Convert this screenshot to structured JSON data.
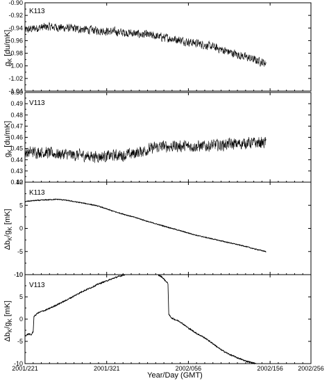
{
  "chart_data": [
    {
      "type": "line",
      "panel_label": "K113",
      "ylabel_main": "g",
      "ylabel_sub": "K",
      "ylabel_unit": " [du/mK]",
      "ylim": [
        -1.04,
        -0.9
      ],
      "yticks": [
        -1.04,
        -1.02,
        -1.0,
        -0.98,
        -0.96,
        -0.94,
        -0.92,
        -0.9
      ],
      "ytick_labels": [
        "-1.04",
        "-1.02",
        "-1.00",
        "-0.98",
        "-0.96",
        "-0.94",
        "-0.92",
        "-0.90"
      ],
      "x": [
        0,
        20,
        40,
        60,
        80,
        100,
        120,
        140,
        160,
        180,
        200,
        220,
        240,
        260,
        280,
        300,
        320,
        340,
        360,
        380,
        400,
        420,
        440,
        460,
        480,
        500,
        520,
        540,
        560,
        580,
        600,
        620,
        640,
        660,
        680,
        700
      ],
      "y": [
        -0.944,
        -0.941,
        -0.939,
        -0.938,
        -0.939,
        -0.94,
        -0.941,
        -0.942,
        -0.943,
        -0.944,
        -0.945,
        -0.946,
        -0.947,
        -0.948,
        -0.95,
        -0.951,
        -0.953,
        -0.955,
        -0.957,
        -0.959,
        -0.962,
        -0.964,
        -0.967,
        -0.97,
        -0.974,
        -0.978,
        -0.982,
        -0.986,
        -0.99,
        -0.994,
        -0.998,
        -1.002,
        -1.006,
        -1.009,
        -1.012,
        -1.015
      ],
      "noise_amplitude": 0.009
    },
    {
      "type": "line",
      "panel_label": "V113",
      "ylabel_main": "g",
      "ylabel_sub": "K",
      "ylabel_unit": " [du/mK]",
      "ylim": [
        0.42,
        0.5
      ],
      "yticks": [
        0.42,
        0.43,
        0.44,
        0.45,
        0.46,
        0.47,
        0.48,
        0.49,
        0.5
      ],
      "ytick_labels": [
        "0.42",
        "0.43",
        "0.44",
        "0.45",
        "0.46",
        "0.47",
        "0.48",
        "0.49",
        "0.50"
      ],
      "x": [
        0,
        20,
        40,
        60,
        80,
        100,
        120,
        140,
        160,
        180,
        200,
        220,
        240,
        260,
        280,
        300,
        320,
        340,
        360,
        380,
        400,
        420,
        440,
        460,
        480,
        500,
        520,
        540,
        560,
        580,
        600,
        620,
        640,
        660,
        680,
        700
      ],
      "y": [
        0.446,
        0.447,
        0.447,
        0.446,
        0.445,
        0.445,
        0.444,
        0.444,
        0.443,
        0.443,
        0.443,
        0.444,
        0.444,
        0.445,
        0.447,
        0.449,
        0.451,
        0.452,
        0.452,
        0.452,
        0.452,
        0.452,
        0.452,
        0.453,
        0.453,
        0.454,
        0.454,
        0.455,
        0.455,
        0.455,
        0.455,
        0.456,
        0.456,
        0.456,
        0.456,
        0.456
      ],
      "noise_amplitude": 0.007
    },
    {
      "type": "line",
      "panel_label": "K113",
      "ylabel_main": "Δb",
      "ylabel_sub": "K",
      "ylabel_mid": "/g",
      "ylabel_sub2": "K",
      "ylabel_unit": " [mK]",
      "ylim": [
        -10,
        10
      ],
      "yticks": [
        -10,
        -5,
        0,
        5,
        10
      ],
      "ytick_labels": [
        "-10",
        "-5",
        "0",
        "5",
        "10"
      ],
      "x": [
        0,
        20,
        40,
        60,
        80,
        100,
        120,
        140,
        160,
        180,
        200,
        220,
        240,
        260,
        280,
        300,
        320,
        340,
        360,
        380,
        400,
        420,
        440,
        460,
        480,
        500,
        520,
        540,
        560,
        580,
        600,
        620,
        640,
        660,
        680,
        700
      ],
      "y": [
        5.8,
        6.0,
        6.1,
        6.2,
        6.3,
        6.1,
        5.8,
        5.5,
        5.2,
        4.8,
        4.2,
        3.6,
        3.1,
        2.6,
        2.1,
        1.5,
        1.0,
        0.5,
        0.0,
        -0.5,
        -1.0,
        -1.5,
        -1.9,
        -2.3,
        -2.7,
        -3.1,
        -3.5,
        -3.9,
        -4.4,
        -4.8,
        -5.3,
        -5.7,
        -6.2,
        -6.6,
        -7.0,
        -7.2
      ],
      "noise_amplitude": 0.12
    },
    {
      "type": "line",
      "panel_label": "V113",
      "ylabel_main": "Δb",
      "ylabel_sub": "K",
      "ylabel_mid": "/g",
      "ylabel_sub2": "K",
      "ylabel_unit": " [mK]",
      "ylim": [
        -10,
        10
      ],
      "yticks": [
        -10,
        -5,
        0,
        5,
        10
      ],
      "ytick_labels": [
        "-10",
        "-5",
        "0",
        "5",
        "10"
      ],
      "x": [
        0,
        5,
        10,
        15,
        20,
        22,
        25,
        30,
        40,
        50,
        60,
        80,
        100,
        120,
        140,
        160,
        180,
        200,
        220,
        240,
        260,
        280,
        300,
        320,
        335,
        345,
        350,
        352,
        360,
        380,
        400,
        420,
        440,
        460,
        480,
        500,
        520,
        540,
        560,
        580,
        600,
        620,
        640,
        660,
        680,
        700
      ],
      "y": [
        -3.8,
        -3.5,
        -3.3,
        -3.6,
        -2.8,
        0.6,
        0.8,
        1.3,
        1.7,
        2.0,
        2.4,
        3.3,
        4.2,
        5.2,
        6.2,
        7.0,
        7.9,
        8.6,
        9.3,
        9.9,
        10.5,
        10.8,
        10.6,
        10.2,
        9.5,
        8.5,
        8.0,
        1.0,
        0.2,
        -0.6,
        -2.0,
        -3.2,
        -4.2,
        -5.5,
        -6.9,
        -7.9,
        -8.7,
        -9.4,
        -9.9,
        -10.4,
        -10.6,
        -10.8,
        -10.9,
        -10.9,
        -11.0,
        -11.0
      ],
      "noise_amplitude": 0.18
    }
  ],
  "x_axis": {
    "label": "Year/Day (GMT)",
    "xlim": [
      0,
      700
    ],
    "ticks": [
      0,
      200,
      400,
      600,
      700
    ],
    "tick_labels": [
      "2001/221",
      "2001/321",
      "2002/056",
      "2002/156",
      "2002/256"
    ],
    "data_end": 590
  },
  "style": {
    "line_color": "#000000",
    "axis_color": "#000000",
    "background": "#ffffff"
  }
}
